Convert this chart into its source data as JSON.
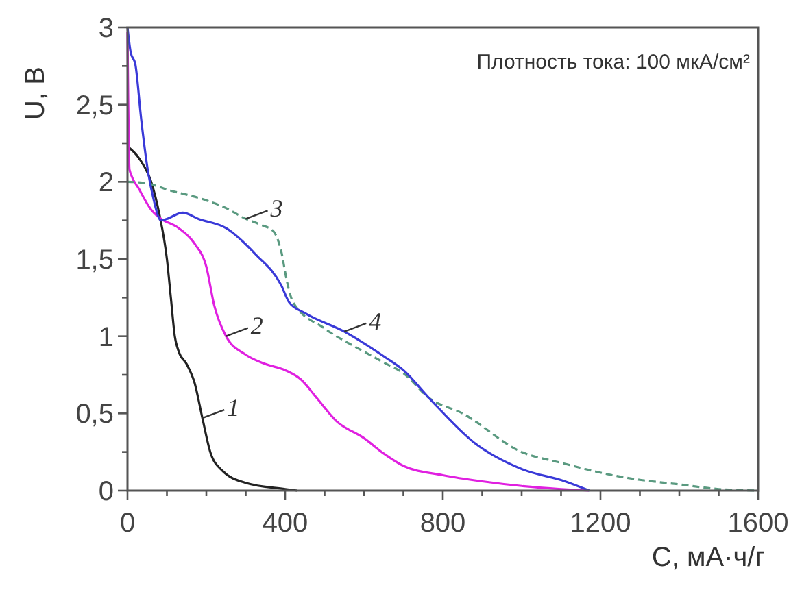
{
  "chart_data": {
    "type": "line",
    "xlabel": "C, мА·ч/г",
    "ylabel": "U, В",
    "xlim": [
      0,
      1600
    ],
    "ylim": [
      0,
      3
    ],
    "xticks": [
      0,
      {
        "value": 100,
        "label": null
      },
      {
        "value": 200,
        "label": null
      },
      {
        "value": 300,
        "label": null
      },
      400,
      {
        "value": 500,
        "label": null
      },
      {
        "value": 600,
        "label": null
      },
      {
        "value": 700,
        "label": null
      },
      800,
      {
        "value": 900,
        "label": null
      },
      {
        "value": 1000,
        "label": null
      },
      {
        "value": 1100,
        "label": null
      },
      1200,
      {
        "value": 1300,
        "label": null
      },
      {
        "value": 1400,
        "label": null
      },
      {
        "value": 1500,
        "label": null
      },
      1600
    ],
    "yticks": [
      0,
      {
        "value": 0.25,
        "label": null
      },
      {
        "value": 0.5,
        "label": "0,5"
      },
      {
        "value": 0.75,
        "label": null
      },
      1,
      {
        "value": 1.25,
        "label": null
      },
      {
        "value": 1.5,
        "label": "1,5"
      },
      {
        "value": 1.75,
        "label": null
      },
      2,
      {
        "value": 2.25,
        "label": null
      },
      {
        "value": 2.5,
        "label": "2,5"
      },
      {
        "value": 2.75,
        "label": null
      },
      3
    ],
    "grid": false,
    "marker": "none",
    "series": [
      {
        "name": "1",
        "color": "#222222",
        "line_style": "solid",
        "x": [
          0,
          30,
          60,
          80,
          100,
          110,
          120,
          130,
          150,
          170,
          190,
          210,
          240,
          300,
          400,
          430
        ],
        "values": [
          2.23,
          2.15,
          2.0,
          1.8,
          1.5,
          1.25,
          1.0,
          0.9,
          0.82,
          0.7,
          0.47,
          0.25,
          0.13,
          0.05,
          0.01,
          0
        ]
      },
      {
        "name": "2",
        "color": "#e020e0",
        "line_style": "solid",
        "x": [
          0,
          5,
          30,
          60,
          80,
          130,
          170,
          200,
          220,
          250,
          300,
          350,
          400,
          440,
          480,
          530,
          600,
          650,
          700,
          800,
          900,
          1000,
          1100,
          1170
        ],
        "values": [
          2.97,
          2.08,
          1.95,
          1.82,
          1.77,
          1.7,
          1.6,
          1.45,
          1.2,
          1.0,
          0.88,
          0.82,
          0.78,
          0.72,
          0.6,
          0.45,
          0.34,
          0.24,
          0.16,
          0.1,
          0.06,
          0.03,
          0.01,
          0
        ]
      },
      {
        "name": "3",
        "color": "#5a9a80",
        "line_style": "dashed",
        "x": [
          0,
          50,
          100,
          200,
          250,
          300,
          340,
          370,
          390,
          405,
          420,
          500,
          600,
          650,
          700,
          765,
          850,
          1000,
          1100,
          1230,
          1300,
          1400,
          1500,
          1600
        ],
        "values": [
          2.0,
          1.99,
          1.95,
          1.88,
          1.83,
          1.76,
          1.72,
          1.68,
          1.55,
          1.35,
          1.22,
          1.05,
          0.9,
          0.83,
          0.76,
          0.6,
          0.5,
          0.25,
          0.18,
          0.1,
          0.07,
          0.04,
          0.01,
          0
        ]
      },
      {
        "name": "4",
        "color": "#3a3ad8",
        "line_style": "solid",
        "x": [
          0,
          8,
          20,
          35,
          50,
          65,
          85,
          100,
          140,
          180,
          250,
          325,
          390,
          410,
          450,
          550,
          650,
          700,
          765,
          880,
          1000,
          1110,
          1172
        ],
        "values": [
          3.0,
          2.84,
          2.76,
          2.4,
          2.1,
          1.9,
          1.75,
          1.76,
          1.8,
          1.76,
          1.7,
          1.53,
          1.33,
          1.22,
          1.15,
          1.03,
          0.87,
          0.78,
          0.6,
          0.31,
          0.14,
          0.06,
          0
        ]
      }
    ],
    "annotations": [
      "Плотность тока: 100 мкА/см²"
    ]
  }
}
